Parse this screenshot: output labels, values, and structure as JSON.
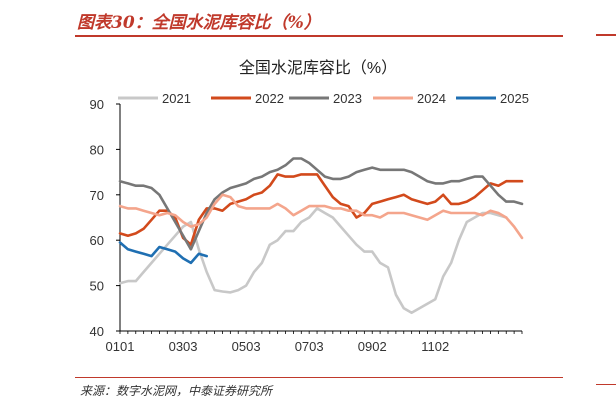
{
  "figure": {
    "title": "图表30：全国水泥库容比（%）",
    "source": "来源：数字水泥网，中泰证券研究所"
  },
  "colors": {
    "accent": "#c0392b",
    "2021": "#c8c8c8",
    "2022": "#d24a1c",
    "2023": "#777777",
    "2024": "#f4a58c",
    "2025": "#1f6fb2"
  },
  "chart_data": {
    "type": "line",
    "title": "全国水泥库容比（%）",
    "xlabel": "",
    "ylabel": "",
    "ylim": [
      40,
      90
    ],
    "y_ticks": [
      40,
      50,
      60,
      70,
      80,
      90
    ],
    "x_tick_labels": [
      "0101",
      "0303",
      "0503",
      "0703",
      "0902",
      "1102"
    ],
    "x_tick_weeks": [
      1,
      9,
      17,
      25,
      33,
      41
    ],
    "x_week_range": [
      1,
      52
    ],
    "grid": false,
    "legend_position": "top",
    "series": [
      {
        "name": "2021",
        "color": "#c8c8c8",
        "x": [
          1,
          2,
          3,
          4,
          5,
          6,
          7,
          8,
          9,
          10,
          11,
          12,
          13,
          14,
          15,
          16,
          17,
          18,
          19,
          20,
          21,
          22,
          23,
          24,
          25,
          26,
          27,
          28,
          29,
          30,
          31,
          32,
          33,
          34,
          35,
          36,
          37,
          38,
          39,
          40,
          41,
          42,
          43,
          44,
          45,
          46,
          47,
          48,
          49,
          50
        ],
        "values": [
          50.5,
          51,
          51,
          53,
          55,
          57,
          59,
          61,
          63,
          64,
          58,
          53,
          49,
          48.7,
          48.5,
          49,
          50,
          53,
          55,
          59,
          60,
          62,
          62,
          64,
          65,
          67,
          66,
          65,
          63,
          61,
          59,
          57.5,
          57.5,
          55,
          54,
          48,
          45,
          44,
          45,
          46,
          47,
          52,
          55,
          60,
          64,
          65,
          66,
          66,
          65.5,
          65
        ]
      },
      {
        "name": "2022",
        "color": "#d24a1c",
        "x": [
          1,
          2,
          3,
          4,
          5,
          6,
          7,
          8,
          9,
          10,
          11,
          12,
          13,
          14,
          15,
          16,
          17,
          18,
          19,
          20,
          21,
          22,
          23,
          24,
          25,
          26,
          27,
          28,
          29,
          30,
          31,
          32,
          33,
          34,
          35,
          36,
          37,
          38,
          39,
          40,
          41,
          42,
          43,
          44,
          45,
          46,
          47,
          48,
          49,
          50,
          51,
          52
        ],
        "values": [
          61.5,
          61,
          61.5,
          62.5,
          64.5,
          66.5,
          66.5,
          65,
          60.5,
          59,
          64.5,
          67,
          67,
          66.5,
          68,
          68.5,
          69,
          70,
          70.5,
          72,
          74.5,
          74,
          74,
          74.5,
          74.5,
          74.5,
          72,
          69.5,
          68,
          67.5,
          65,
          66,
          68,
          68.5,
          69,
          69.5,
          70,
          69,
          68.5,
          68,
          68.5,
          70,
          68,
          68,
          68.5,
          69.5,
          71,
          72.5,
          72,
          73,
          73,
          73
        ]
      },
      {
        "name": "2023",
        "color": "#777777",
        "x": [
          1,
          2,
          3,
          4,
          5,
          6,
          7,
          8,
          9,
          10,
          11,
          12,
          13,
          14,
          15,
          16,
          17,
          18,
          19,
          20,
          21,
          22,
          23,
          24,
          25,
          26,
          27,
          28,
          29,
          30,
          31,
          32,
          33,
          34,
          35,
          36,
          37,
          38,
          39,
          40,
          41,
          42,
          43,
          44,
          45,
          46,
          47,
          48,
          49,
          50,
          51,
          52
        ],
        "values": [
          73,
          72.5,
          72,
          72,
          71.5,
          70,
          67,
          64,
          61,
          58,
          62,
          66,
          69,
          70.5,
          71.5,
          72,
          72.5,
          73.5,
          74,
          75,
          75.5,
          76.5,
          78,
          78,
          77,
          75.5,
          74,
          73.5,
          73.5,
          74,
          75,
          75.5,
          76,
          75.5,
          75.5,
          75.5,
          75.5,
          75,
          74,
          73,
          72.5,
          72.5,
          73,
          73,
          73.5,
          74,
          74,
          72,
          70,
          68.5,
          68.5,
          68
        ]
      },
      {
        "name": "2024",
        "color": "#f4a58c",
        "x": [
          1,
          2,
          3,
          4,
          5,
          6,
          7,
          8,
          9,
          10,
          11,
          12,
          13,
          14,
          15,
          16,
          17,
          18,
          19,
          20,
          21,
          22,
          23,
          24,
          25,
          26,
          27,
          28,
          29,
          30,
          31,
          32,
          33,
          34,
          35,
          36,
          37,
          38,
          39,
          40,
          41,
          42,
          43,
          44,
          45,
          46,
          47,
          48,
          49,
          50,
          51,
          52
        ],
        "values": [
          67.5,
          67,
          67,
          66.5,
          66,
          65.5,
          66,
          65.5,
          64,
          63,
          63.5,
          65,
          68,
          70,
          69.5,
          67.5,
          67,
          67,
          67,
          67,
          68,
          67,
          65.5,
          66.5,
          67.5,
          67.5,
          67.5,
          67,
          67,
          66.5,
          66.5,
          65.5,
          65.5,
          65,
          66,
          66,
          66,
          65.5,
          65,
          64.5,
          65.5,
          66.5,
          66,
          66,
          66,
          66,
          65.5,
          66.5,
          66,
          65,
          63,
          60.5
        ]
      },
      {
        "name": "2025",
        "color": "#1f6fb2",
        "x": [
          1,
          2,
          3,
          4,
          5,
          6,
          7,
          8,
          9,
          10,
          11,
          12
        ],
        "values": [
          59.5,
          58,
          57.5,
          57,
          56.5,
          58.5,
          58,
          57.5,
          56,
          55,
          57,
          56.5
        ]
      }
    ]
  }
}
